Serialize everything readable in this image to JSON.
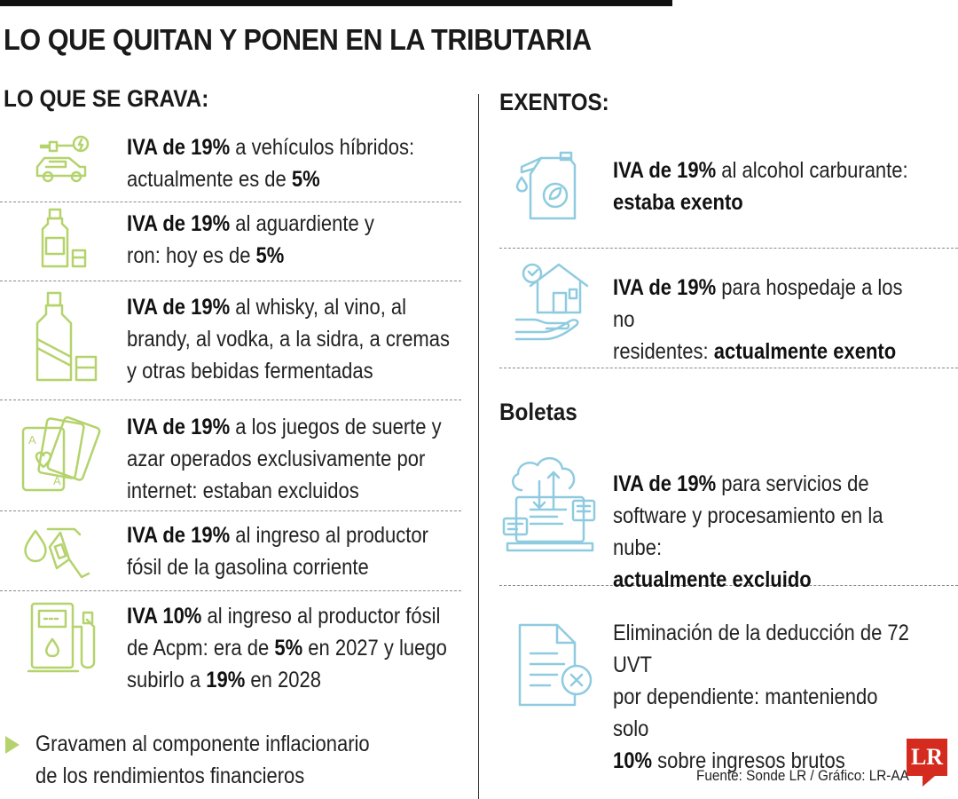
{
  "title": "LO QUE QUITAN Y PONEN EN LA TRIBUTARIA",
  "left_heading": "LO QUE SE GRAVA:",
  "right_heading": "EXENTOS:",
  "boletas_heading": "Boletas",
  "colors": {
    "green": "#b5d36c",
    "blue": "#8fcbe0",
    "brand": "#d52b1e"
  },
  "left_items": [
    {
      "icon": "hybrid-car-icon",
      "bold": "IVA de 19%",
      "text": " a vehículos híbridos:",
      "line2": "actualmente es de ",
      "tail_bold": "5%"
    },
    {
      "icon": "aguardiente-bottle-icon",
      "bold": "IVA de 19%",
      "text": " al aguardiente y",
      "line2": "ron: hoy es de ",
      "tail_bold": "5%"
    },
    {
      "icon": "whisky-bottle-icon",
      "bold": "IVA de 19%",
      "text": " al whisky, al vino, al",
      "line2": "brandy, al vodka, a la sidra, a cremas",
      "line3": "y otras bebidas fermentadas"
    },
    {
      "icon": "playing-cards-icon",
      "bold": "IVA de 19%",
      "text": " a los juegos de suerte y",
      "line2": "azar operados exclusivamente por",
      "line3": "internet: estaban excluidos"
    },
    {
      "icon": "fuel-nozzle-icon",
      "bold": "IVA de 19%",
      "text": " al ingreso al productor",
      "line2": "fósil de la gasolina corriente"
    },
    {
      "icon": "fuel-pump-icon",
      "bold": "IVA 10%",
      "text": " al ingreso al productor fósil",
      "line2a": "de Acpm: era de ",
      "line2b": "5%",
      "line2c": " en 2027 y luego",
      "line3a": "subirlo a ",
      "line3b": "19%",
      "line3c": " en 2028"
    }
  ],
  "bullet_text": {
    "line1": "Gravamen al componente inflacionario",
    "line2": "de los rendimientos financieros"
  },
  "right_items": [
    {
      "icon": "fuel-can-icon",
      "bold": "IVA de 19%",
      "text": " al alcohol carburante:",
      "line2_bold": "estaba exento"
    },
    {
      "icon": "house-hand-icon",
      "bold": "IVA de 19%",
      "text": " para hospedaje a los no",
      "line2": "residentes: ",
      "line2_bold": "actualmente exento"
    },
    {
      "icon": "cloud-laptop-icon",
      "bold": "IVA de 19%",
      "text": " para servicios de",
      "line2": "software y procesamiento en la nube:",
      "line3_bold": "actualmente excluido"
    },
    {
      "icon": "document-x-icon",
      "line1": "Eliminación de la deducción de 72 UVT",
      "line2": "por dependiente: manteniendo solo",
      "line3_bold": "10%",
      "line3": " sobre ingresos brutos"
    }
  ],
  "source": "Fuente: Sonde LR / Gráfico: LR-AA",
  "logo": "LR"
}
